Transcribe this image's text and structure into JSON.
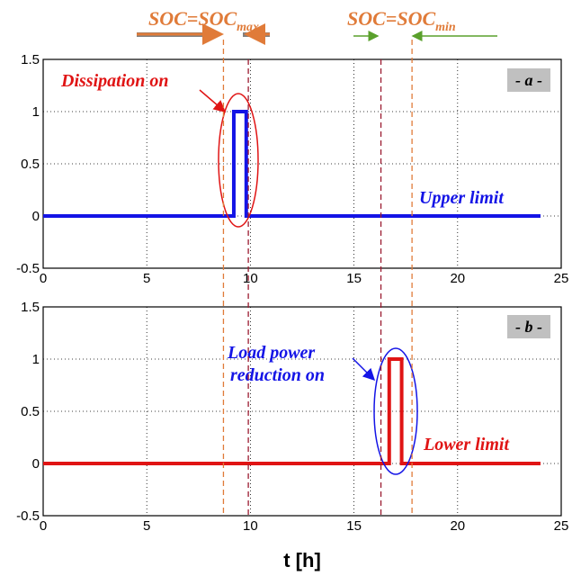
{
  "chart_data": [
    {
      "type": "line",
      "panel_tag": "- a -",
      "xlim": [
        0,
        25
      ],
      "ylim": [
        -0.5,
        1.5
      ],
      "xticks": [
        0,
        5,
        10,
        15,
        20,
        25
      ],
      "yticks": [
        -0.5,
        0,
        0.5,
        1,
        1.5
      ],
      "x_tick_labels": [
        "0",
        "5",
        "10",
        "15",
        "20",
        "25"
      ],
      "y_tick_labels": [
        "-0.5",
        "0",
        "0.5",
        "1",
        "1.5"
      ],
      "grid": true,
      "series": [
        {
          "color": "#1414e6",
          "x": [
            0,
            9.2,
            9.2,
            9.8,
            9.8,
            24
          ],
          "y": [
            0,
            0,
            1,
            1,
            0,
            0
          ]
        }
      ],
      "annotations": [
        {
          "text": "Dissipation on",
          "color": "#e01414"
        },
        {
          "text": "Upper limit",
          "color": "#1414e6"
        }
      ]
    },
    {
      "type": "line",
      "panel_tag": "- b -",
      "xlim": [
        0,
        25
      ],
      "ylim": [
        -0.5,
        1.5
      ],
      "xticks": [
        0,
        5,
        10,
        15,
        20,
        25
      ],
      "yticks": [
        -0.5,
        0,
        0.5,
        1,
        1.5
      ],
      "x_tick_labels": [
        "0",
        "5",
        "10",
        "15",
        "20",
        "25"
      ],
      "y_tick_labels": [
        "-0.5",
        "0",
        "0.5",
        "1",
        "1.5"
      ],
      "grid": true,
      "xlabel": "t [h]",
      "series": [
        {
          "color": "#e01414",
          "x": [
            0,
            16.7,
            16.7,
            17.3,
            17.3,
            24
          ],
          "y": [
            0,
            0,
            1,
            1,
            0,
            0
          ]
        }
      ],
      "annotations": [
        {
          "text": "Load power reduction on",
          "lines": [
            "Load power",
            "reduction on"
          ],
          "color": "#1414e6"
        },
        {
          "text": "Lower limit",
          "color": "#e01414"
        }
      ]
    }
  ],
  "markers": {
    "soc_max": {
      "base": "SOC=SOC",
      "sub": "max",
      "color": "#e07b39"
    },
    "soc_min": {
      "base": "SOC=SOC",
      "sub": "min",
      "color": "#e07b39"
    },
    "orange_lines_x": [
      8.7,
      17.8
    ],
    "red_lines_x": [
      9.9,
      16.3
    ]
  }
}
